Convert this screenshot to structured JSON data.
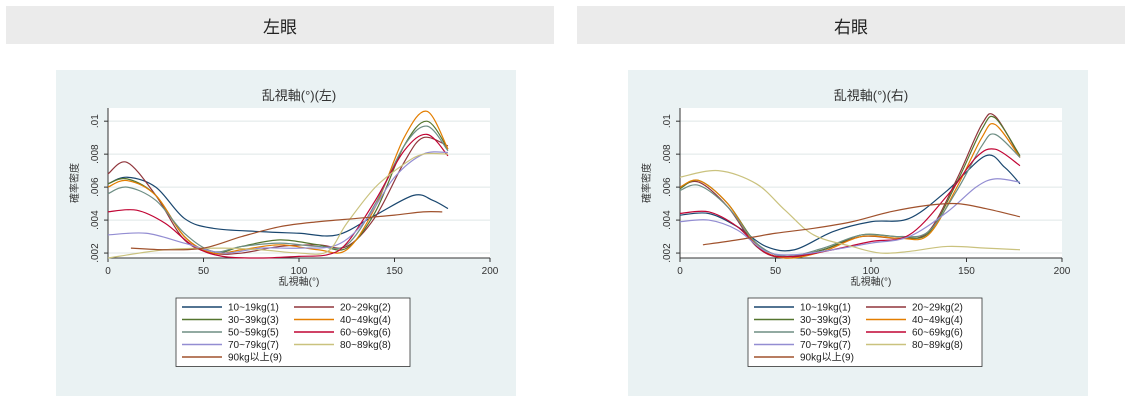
{
  "headers": {
    "left": "左眼",
    "right": "右眼"
  },
  "chart_data": [
    {
      "type": "line",
      "title": "乱視軸(°)(左)",
      "xlabel": "乱視軸(°)",
      "ylabel": "確率密度",
      "xlim": [
        0,
        200
      ],
      "ylim": [
        0.0017,
        0.0108
      ],
      "xticks": [
        0,
        50,
        100,
        150,
        200
      ],
      "yticks": [
        0.002,
        0.004,
        0.006,
        0.008,
        0.01
      ],
      "ytick_labels": [
        ".002",
        ".004",
        ".006",
        ".008",
        ".01"
      ],
      "grid": true,
      "legend_position": "bottom",
      "series": [
        {
          "name": "10~19kg(1)",
          "color": "#1a476f",
          "x": [
            0,
            10,
            25,
            40,
            55,
            80,
            100,
            120,
            140,
            160,
            170,
            178
          ],
          "y": [
            0.0062,
            0.0066,
            0.006,
            0.0041,
            0.0035,
            0.0033,
            0.0032,
            0.0031,
            0.0043,
            0.0055,
            0.0052,
            0.0047
          ]
        },
        {
          "name": "20~29kg(2)",
          "color": "#90353b",
          "x": [
            0,
            10,
            25,
            40,
            55,
            70,
            90,
            110,
            125,
            140,
            155,
            165,
            178
          ],
          "y": [
            0.0068,
            0.0075,
            0.0055,
            0.0028,
            0.002,
            0.002,
            0.0024,
            0.0025,
            0.0024,
            0.0042,
            0.0075,
            0.009,
            0.0085
          ]
        },
        {
          "name": "30~39kg(3)",
          "color": "#55752f",
          "x": [
            0,
            10,
            25,
            40,
            55,
            70,
            90,
            110,
            125,
            140,
            155,
            167,
            178
          ],
          "y": [
            0.0062,
            0.0065,
            0.0055,
            0.003,
            0.002,
            0.0024,
            0.0028,
            0.0025,
            0.0023,
            0.0045,
            0.0085,
            0.01,
            0.0083
          ]
        },
        {
          "name": "40~49kg(4)",
          "color": "#e37e00",
          "x": [
            0,
            10,
            25,
            40,
            55,
            70,
            90,
            110,
            125,
            140,
            155,
            167,
            178
          ],
          "y": [
            0.006,
            0.0064,
            0.0055,
            0.003,
            0.002,
            0.0022,
            0.0025,
            0.0022,
            0.0022,
            0.0048,
            0.009,
            0.0106,
            0.0083
          ]
        },
        {
          "name": "50~59kg(5)",
          "color": "#6e8e84",
          "x": [
            0,
            10,
            25,
            40,
            55,
            70,
            90,
            110,
            125,
            140,
            155,
            167,
            178
          ],
          "y": [
            0.0056,
            0.006,
            0.0052,
            0.0032,
            0.0021,
            0.0024,
            0.0026,
            0.0024,
            0.0025,
            0.005,
            0.0085,
            0.0097,
            0.0082
          ]
        },
        {
          "name": "60~69kg(6)",
          "color": "#c10534",
          "x": [
            0,
            15,
            30,
            45,
            60,
            80,
            100,
            115,
            125,
            140,
            155,
            167,
            178
          ],
          "y": [
            0.0045,
            0.0046,
            0.0038,
            0.0024,
            0.0018,
            0.0017,
            0.0018,
            0.0019,
            0.0026,
            0.0052,
            0.0082,
            0.0092,
            0.0079
          ]
        },
        {
          "name": "70~79kg(7)",
          "color": "#938dd2",
          "x": [
            0,
            20,
            40,
            60,
            80,
            100,
            120,
            135,
            150,
            165,
            178
          ],
          "y": [
            0.0031,
            0.0032,
            0.0026,
            0.002,
            0.0023,
            0.0023,
            0.0025,
            0.004,
            0.0066,
            0.008,
            0.0081
          ]
        },
        {
          "name": "80~89kg(8)",
          "color": "#cac27e",
          "x": [
            0,
            30,
            60,
            80,
            100,
            115,
            125,
            140,
            155,
            165,
            178
          ],
          "y": [
            0.0017,
            0.0022,
            0.0023,
            0.0022,
            0.002,
            0.0021,
            0.0038,
            0.006,
            0.0074,
            0.008,
            0.008
          ]
        },
        {
          "name": "90kg以上(9)",
          "color": "#a0522d",
          "x": [
            12,
            30,
            50,
            70,
            90,
            110,
            130,
            150,
            165,
            175
          ],
          "y": [
            0.0023,
            0.0022,
            0.0023,
            0.003,
            0.0036,
            0.0039,
            0.0041,
            0.0043,
            0.0045,
            0.0045
          ]
        }
      ]
    },
    {
      "type": "line",
      "title": "乱視軸(°)(右)",
      "xlabel": "乱視軸(°)",
      "ylabel": "確率密度",
      "xlim": [
        0,
        200
      ],
      "ylim": [
        0.0017,
        0.0108
      ],
      "xticks": [
        0,
        50,
        100,
        150,
        200
      ],
      "yticks": [
        0.002,
        0.004,
        0.006,
        0.008,
        0.01
      ],
      "ytick_labels": [
        ".002",
        ".004",
        ".006",
        ".008",
        ".01"
      ],
      "grid": true,
      "legend_position": "bottom",
      "series": [
        {
          "name": "10~19kg(1)",
          "color": "#1a476f",
          "x": [
            0,
            15,
            30,
            45,
            60,
            80,
            100,
            120,
            140,
            160,
            170,
            178
          ],
          "y": [
            0.0043,
            0.0044,
            0.0036,
            0.0024,
            0.0022,
            0.0033,
            0.0039,
            0.0041,
            0.0058,
            0.0079,
            0.0072,
            0.0062
          ]
        },
        {
          "name": "20~29kg(2)",
          "color": "#90353b",
          "x": [
            0,
            10,
            25,
            40,
            55,
            75,
            95,
            115,
            130,
            145,
            158,
            165,
            178
          ],
          "y": [
            0.006,
            0.0063,
            0.0048,
            0.0024,
            0.0017,
            0.0022,
            0.003,
            0.0029,
            0.0033,
            0.0065,
            0.0098,
            0.0103,
            0.0078
          ]
        },
        {
          "name": "30~39kg(3)",
          "color": "#55752f",
          "x": [
            0,
            10,
            25,
            40,
            55,
            75,
            95,
            115,
            130,
            145,
            158,
            165,
            178
          ],
          "y": [
            0.0059,
            0.0064,
            0.005,
            0.0026,
            0.0018,
            0.0022,
            0.0031,
            0.003,
            0.0032,
            0.0063,
            0.0095,
            0.0102,
            0.0079
          ]
        },
        {
          "name": "40~49kg(4)",
          "color": "#e37e00",
          "x": [
            0,
            10,
            25,
            40,
            55,
            75,
            95,
            115,
            130,
            145,
            158,
            165,
            178
          ],
          "y": [
            0.006,
            0.0064,
            0.005,
            0.0025,
            0.0017,
            0.0021,
            0.003,
            0.0029,
            0.0031,
            0.006,
            0.009,
            0.0098,
            0.0078
          ]
        },
        {
          "name": "50~59kg(5)",
          "color": "#6e8e84",
          "x": [
            0,
            10,
            25,
            40,
            55,
            75,
            95,
            115,
            130,
            145,
            158,
            165,
            178
          ],
          "y": [
            0.0058,
            0.0061,
            0.0048,
            0.0026,
            0.0018,
            0.0023,
            0.0031,
            0.003,
            0.0033,
            0.0058,
            0.0085,
            0.0092,
            0.0078
          ]
        },
        {
          "name": "60~69kg(6)",
          "color": "#c10534",
          "x": [
            0,
            15,
            30,
            45,
            60,
            80,
            100,
            120,
            140,
            155,
            165,
            178
          ],
          "y": [
            0.0044,
            0.0045,
            0.0036,
            0.002,
            0.0018,
            0.0022,
            0.0027,
            0.0031,
            0.0055,
            0.0078,
            0.0083,
            0.0073
          ]
        },
        {
          "name": "70~79kg(7)",
          "color": "#938dd2",
          "x": [
            0,
            15,
            30,
            45,
            60,
            80,
            100,
            120,
            140,
            155,
            165,
            178
          ],
          "y": [
            0.0039,
            0.004,
            0.0034,
            0.0021,
            0.0019,
            0.0022,
            0.0026,
            0.003,
            0.0045,
            0.006,
            0.0065,
            0.0063
          ]
        },
        {
          "name": "80~89kg(8)",
          "color": "#cac27e",
          "x": [
            0,
            20,
            40,
            55,
            70,
            90,
            105,
            120,
            140,
            160,
            178
          ],
          "y": [
            0.0066,
            0.007,
            0.0062,
            0.0046,
            0.0031,
            0.0024,
            0.002,
            0.0021,
            0.0024,
            0.0023,
            0.0022
          ]
        },
        {
          "name": "90kg以上(9)",
          "color": "#a0522d",
          "x": [
            12,
            30,
            50,
            70,
            90,
            110,
            130,
            145,
            160,
            178
          ],
          "y": [
            0.0025,
            0.0028,
            0.0032,
            0.0035,
            0.0039,
            0.0045,
            0.0049,
            0.005,
            0.0047,
            0.0042
          ]
        }
      ]
    }
  ]
}
